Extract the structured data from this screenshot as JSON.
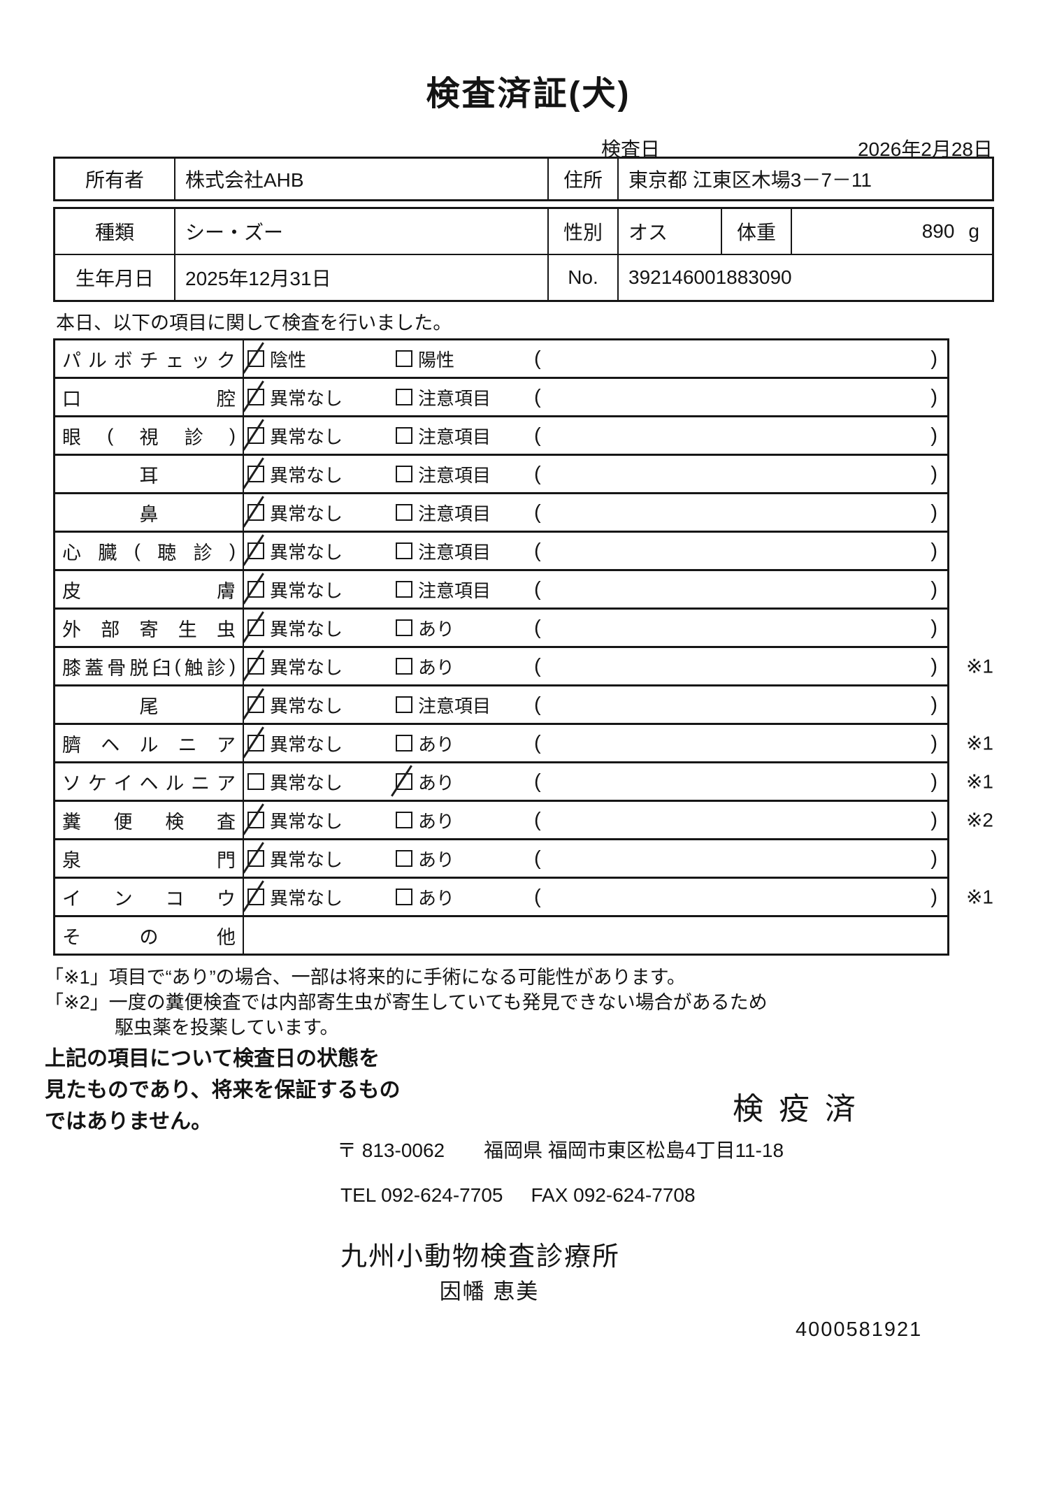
{
  "page": {
    "title": "検査済証(犬)",
    "exam_date_label": "検査日",
    "exam_date": "2026年2月28日"
  },
  "owner_table": {
    "owner_label": "所有者",
    "owner": "株式会社AHB",
    "address_label": "住所",
    "address": "東京都 江東区木場3－7－11"
  },
  "animal_table": {
    "breed_label": "種類",
    "breed": "シー・ズー",
    "sex_label": "性別",
    "sex": "オス",
    "weight_label": "体重",
    "weight": "890",
    "weight_unit": "g",
    "birth_label": "生年月日",
    "birth": "2025年12月31日",
    "no_label": "No.",
    "no": "392146001883090"
  },
  "intro": "本日、以下の項目に関して検査を行いました。",
  "checklist": {
    "paren_open": "(",
    "paren_close": ")",
    "checkbox_color": "#161616",
    "rows": [
      {
        "label": "パルボチェック",
        "opt1": "陰性",
        "opt2": "陽性",
        "checked": 1,
        "note": ""
      },
      {
        "label": "口腔",
        "opt1": "異常なし",
        "opt2": "注意項目",
        "checked": 1,
        "note": ""
      },
      {
        "label": "眼(視診)",
        "opt1": "異常なし",
        "opt2": "注意項目",
        "checked": 1,
        "note": ""
      },
      {
        "label": "耳",
        "opt1": "異常なし",
        "opt2": "注意項目",
        "checked": 1,
        "note": ""
      },
      {
        "label": "鼻",
        "opt1": "異常なし",
        "opt2": "注意項目",
        "checked": 1,
        "note": ""
      },
      {
        "label": "心臓(聴診)",
        "opt1": "異常なし",
        "opt2": "注意項目",
        "checked": 1,
        "note": ""
      },
      {
        "label": "皮膚",
        "opt1": "異常なし",
        "opt2": "注意項目",
        "checked": 1,
        "note": ""
      },
      {
        "label": "外部寄生虫",
        "opt1": "異常なし",
        "opt2": "あり",
        "checked": 1,
        "note": ""
      },
      {
        "label": "膝蓋骨脱臼(触診)",
        "opt1": "異常なし",
        "opt2": "あり",
        "checked": 1,
        "note": "※1"
      },
      {
        "label": "尾",
        "opt1": "異常なし",
        "opt2": "注意項目",
        "checked": 1,
        "note": ""
      },
      {
        "label": "臍ヘルニア",
        "opt1": "異常なし",
        "opt2": "あり",
        "checked": 1,
        "note": "※1"
      },
      {
        "label": "ソケイヘルニア",
        "opt1": "異常なし",
        "opt2": "あり",
        "checked": 2,
        "note": "※1"
      },
      {
        "label": "糞便検査",
        "opt1": "異常なし",
        "opt2": "あり",
        "checked": 1,
        "note": "※2"
      },
      {
        "label": "泉門",
        "opt1": "異常なし",
        "opt2": "あり",
        "checked": 1,
        "note": ""
      },
      {
        "label": "インコウ",
        "opt1": "異常なし",
        "opt2": "あり",
        "checked": 1,
        "note": "※1"
      },
      {
        "label": "その他",
        "opt1": null,
        "opt2": null,
        "checked": 0,
        "note": ""
      }
    ]
  },
  "notes": [
    "「※1」項目で“あり”の場合、一部は将来的に手術になる可能性があります。",
    "「※2」一度の糞便検査では内部寄生虫が寄生していても発見できない場合があるため",
    "駆虫薬を投薬しています。"
  ],
  "disclaimer": [
    "上記の項目について検査日の状態を",
    "見たものであり、将来を保証するもの",
    "ではありません。"
  ],
  "quarantine_stamp": "検疫済",
  "clinic": {
    "postal": "〒 813-0062",
    "address": "福岡県 福岡市東区松島4丁目11-18",
    "tel": "TEL 092-624-7705",
    "fax": "FAX 092-624-7708",
    "name": "九州小動物検査診療所",
    "examiner": "因幡 恵美"
  },
  "serial": "4000581921"
}
